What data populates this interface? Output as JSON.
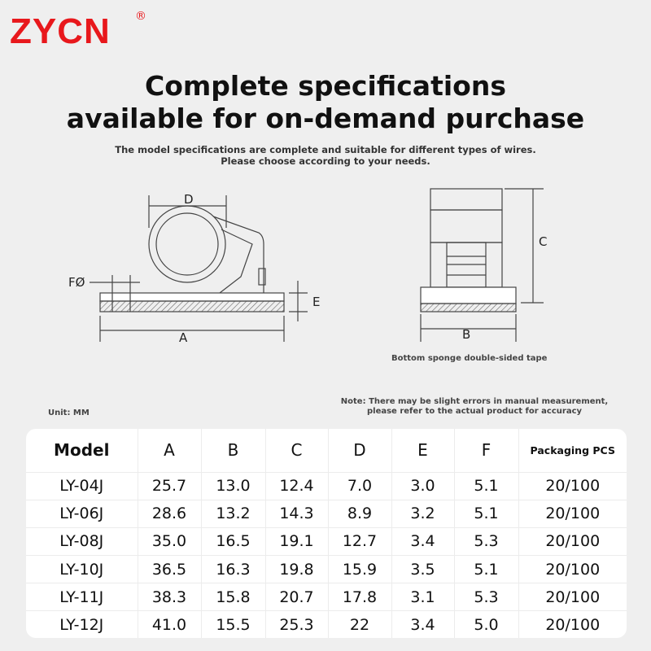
{
  "brand": {
    "logo": "ZYCN",
    "registered_mark": "®",
    "color": "#e8181c"
  },
  "headline": [
    "Complete specifications",
    "available for on-demand purchase"
  ],
  "subtitle": [
    "The model specifications are complete and suitable for different types of wires.",
    "Please choose according to your needs."
  ],
  "diagram": {
    "labels": {
      "A": "A",
      "B": "B",
      "C": "C",
      "D": "D",
      "E": "E",
      "F": "FØ"
    },
    "tape_caption": "Bottom sponge double-sided tape"
  },
  "unit": "Unit: MM",
  "note": [
    "Note: There may be slight errors in manual measurement,",
    "please refer to the actual product for accuracy"
  ],
  "table": {
    "headers": [
      "Model",
      "A",
      "B",
      "C",
      "D",
      "E",
      "F",
      "Packaging PCS"
    ],
    "rows": [
      [
        "LY-04J",
        "25.7",
        "13.0",
        "12.4",
        "7.0",
        "3.0",
        "5.1",
        "20/100"
      ],
      [
        "LY-06J",
        "28.6",
        "13.2",
        "14.3",
        "8.9",
        "3.2",
        "5.1",
        "20/100"
      ],
      [
        "LY-08J",
        "35.0",
        "16.5",
        "19.1",
        "12.7",
        "3.4",
        "5.3",
        "20/100"
      ],
      [
        "LY-10J",
        "36.5",
        "16.3",
        "19.8",
        "15.9",
        "3.5",
        "5.1",
        "20/100"
      ],
      [
        "LY-11J",
        "38.3",
        "15.8",
        "20.7",
        "17.8",
        "3.1",
        "5.3",
        "20/100"
      ],
      [
        "LY-12J",
        "41.0",
        "15.5",
        "25.3",
        "22",
        "3.4",
        "5.0",
        "20/100"
      ]
    ]
  }
}
